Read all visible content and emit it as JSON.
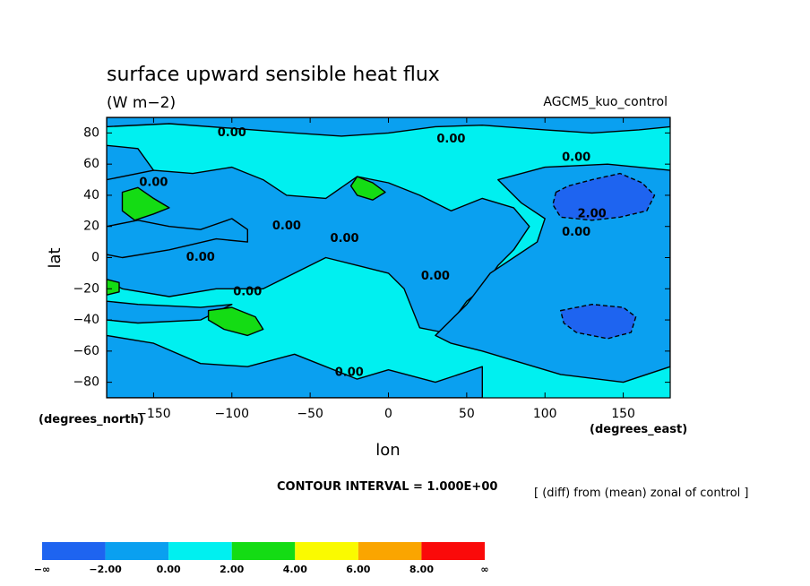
{
  "chart_data": {
    "type": "heatmap",
    "title": "surface upward sensible heat flux",
    "units": "(W m−2)",
    "model_label": "AGCM5_kuo_control",
    "xlabel": "lon",
    "ylabel": "lat",
    "x_unit_label": "(degrees_east)",
    "y_unit_label": "(degrees_north)",
    "xlim": [
      -180,
      180
    ],
    "ylim": [
      -90,
      90
    ],
    "x_ticks": [
      {
        "value": -150,
        "label": "−150"
      },
      {
        "value": -100,
        "label": "−100"
      },
      {
        "value": -50,
        "label": "−50"
      },
      {
        "value": 0,
        "label": "0"
      },
      {
        "value": 50,
        "label": "50"
      },
      {
        "value": 100,
        "label": "100"
      },
      {
        "value": 150,
        "label": "150"
      }
    ],
    "y_ticks": [
      {
        "value": 80,
        "label": "80"
      },
      {
        "value": 60,
        "label": "60"
      },
      {
        "value": 40,
        "label": "40"
      },
      {
        "value": 20,
        "label": "20"
      },
      {
        "value": 0,
        "label": "0"
      },
      {
        "value": -20,
        "label": "−20"
      },
      {
        "value": -40,
        "label": "−40"
      },
      {
        "value": -60,
        "label": "−60"
      },
      {
        "value": -80,
        "label": "−80"
      }
    ],
    "contour_interval_text": "CONTOUR INTERVAL = 1.000E+00",
    "description_text": "[ (diff) from (mean) zonal of control ]",
    "contour_labels": [
      {
        "text": "0.00",
        "lon": -100,
        "lat": 80
      },
      {
        "text": "0.00",
        "lon": 40,
        "lat": 76
      },
      {
        "text": "0.00",
        "lon": 120,
        "lat": 64
      },
      {
        "text": "0.00",
        "lon": -150,
        "lat": 48
      },
      {
        "text": "0.00",
        "lon": -65,
        "lat": 20
      },
      {
        "text": "0.00",
        "lon": -28,
        "lat": 12
      },
      {
        "text": "2.00",
        "lon": 130,
        "lat": 28
      },
      {
        "text": "0.00",
        "lon": 120,
        "lat": 16
      },
      {
        "text": "0.00",
        "lon": -120,
        "lat": 0
      },
      {
        "text": "0.00",
        "lon": 30,
        "lat": -12
      },
      {
        "text": "0.00",
        "lon": -90,
        "lat": -22
      },
      {
        "text": "0.00",
        "lon": -25,
        "lat": -74
      }
    ],
    "colorbar": {
      "colors": [
        "#1e64f0",
        "#0aa0f0",
        "#00f0f0",
        "#14dc14",
        "#fafa00",
        "#faa500",
        "#fa0a0a"
      ],
      "labels": [
        "−∞",
        "−2.00",
        "0.00",
        "2.00",
        "4.00",
        "6.00",
        "8.00",
        "∞"
      ]
    },
    "regions": [
      {
        "level": 2,
        "color": "#00f0f0",
        "points": [
          [
            -180,
            -90
          ],
          [
            180,
            -90
          ],
          [
            180,
            90
          ],
          [
            -180,
            90
          ]
        ]
      },
      {
        "level": 1,
        "color": "#0aa0f0",
        "points": [
          [
            -180,
            84
          ],
          [
            -140,
            86
          ],
          [
            -100,
            83
          ],
          [
            -60,
            80
          ],
          [
            -30,
            78
          ],
          [
            0,
            80
          ],
          [
            30,
            84
          ],
          [
            60,
            85
          ],
          [
            100,
            82
          ],
          [
            130,
            80
          ],
          [
            160,
            82
          ],
          [
            180,
            84
          ],
          [
            180,
            90
          ],
          [
            -180,
            90
          ]
        ]
      },
      {
        "level": 1,
        "color": "#0aa0f0",
        "points": [
          [
            -180,
            72
          ],
          [
            -160,
            70
          ],
          [
            -150,
            56
          ],
          [
            -160,
            40
          ],
          [
            -180,
            42
          ]
        ]
      },
      {
        "level": 1,
        "color": "#0aa0f0",
        "points": [
          [
            -180,
            50
          ],
          [
            -150,
            56
          ],
          [
            -125,
            54
          ],
          [
            -100,
            58
          ],
          [
            -80,
            50
          ],
          [
            -65,
            40
          ],
          [
            -40,
            38
          ],
          [
            -20,
            52
          ],
          [
            0,
            48
          ],
          [
            20,
            40
          ],
          [
            40,
            30
          ],
          [
            60,
            38
          ],
          [
            80,
            32
          ],
          [
            90,
            20
          ],
          [
            80,
            5
          ],
          [
            70,
            -5
          ],
          [
            60,
            -20
          ],
          [
            50,
            -28
          ],
          [
            40,
            -42
          ],
          [
            35,
            -48
          ],
          [
            20,
            -45
          ],
          [
            10,
            -20
          ],
          [
            0,
            -10
          ],
          [
            -20,
            -5
          ],
          [
            -40,
            0
          ],
          [
            -60,
            -10
          ],
          [
            -80,
            -20
          ],
          [
            -110,
            -20
          ],
          [
            -140,
            -25
          ],
          [
            -170,
            -20
          ],
          [
            -180,
            -15
          ],
          [
            -180,
            20
          ],
          [
            -160,
            24
          ],
          [
            -140,
            20
          ],
          [
            -120,
            18
          ],
          [
            -100,
            25
          ],
          [
            -90,
            18
          ],
          [
            -90,
            10
          ],
          [
            -110,
            12
          ],
          [
            -140,
            5
          ],
          [
            -170,
            0
          ],
          [
            -180,
            2
          ]
        ]
      },
      {
        "level": 1,
        "color": "#0aa0f0",
        "points": [
          [
            70,
            50
          ],
          [
            100,
            58
          ],
          [
            140,
            60
          ],
          [
            180,
            56
          ],
          [
            180,
            -70
          ],
          [
            150,
            -80
          ],
          [
            110,
            -75
          ],
          [
            80,
            -66
          ],
          [
            60,
            -60
          ],
          [
            40,
            -55
          ],
          [
            30,
            -50
          ],
          [
            50,
            -30
          ],
          [
            65,
            -10
          ],
          [
            80,
            0
          ],
          [
            95,
            10
          ],
          [
            100,
            25
          ],
          [
            85,
            35
          ]
        ]
      },
      {
        "level": 1,
        "color": "#0aa0f0",
        "points": [
          [
            -180,
            -50
          ],
          [
            -150,
            -55
          ],
          [
            -120,
            -68
          ],
          [
            -90,
            -70
          ],
          [
            -60,
            -62
          ],
          [
            -40,
            -70
          ],
          [
            -20,
            -78
          ],
          [
            0,
            -72
          ],
          [
            30,
            -80
          ],
          [
            60,
            -70
          ],
          [
            60,
            -90
          ],
          [
            -180,
            -90
          ]
        ]
      },
      {
        "level": 1,
        "color": "#0aa0f0",
        "points": [
          [
            -180,
            -28
          ],
          [
            -160,
            -30
          ],
          [
            -120,
            -32
          ],
          [
            -100,
            -30
          ],
          [
            -120,
            -40
          ],
          [
            -160,
            -42
          ],
          [
            -180,
            -40
          ]
        ]
      },
      {
        "level": 0,
        "color": "#1e64f0",
        "points": [
          [
            107,
            42
          ],
          [
            115,
            46
          ],
          [
            130,
            50
          ],
          [
            148,
            54
          ],
          [
            162,
            48
          ],
          [
            170,
            40
          ],
          [
            165,
            30
          ],
          [
            148,
            26
          ],
          [
            130,
            24
          ],
          [
            110,
            26
          ],
          [
            105,
            34
          ]
        ]
      },
      {
        "level": 0,
        "color": "#1e64f0",
        "points": [
          [
            110,
            -34
          ],
          [
            130,
            -30
          ],
          [
            150,
            -32
          ],
          [
            158,
            -38
          ],
          [
            155,
            -48
          ],
          [
            140,
            -52
          ],
          [
            120,
            -48
          ],
          [
            112,
            -42
          ]
        ]
      },
      {
        "level": 3,
        "color": "#14dc14",
        "points": [
          [
            -170,
            42
          ],
          [
            -160,
            45
          ],
          [
            -150,
            38
          ],
          [
            -140,
            32
          ],
          [
            -150,
            28
          ],
          [
            -162,
            24
          ],
          [
            -170,
            30
          ]
        ]
      },
      {
        "level": 3,
        "color": "#14dc14",
        "points": [
          [
            -20,
            52
          ],
          [
            -10,
            48
          ],
          [
            -2,
            42
          ],
          [
            -10,
            37
          ],
          [
            -20,
            40
          ],
          [
            -24,
            46
          ]
        ]
      },
      {
        "level": 3,
        "color": "#14dc14",
        "points": [
          [
            -115,
            -34
          ],
          [
            -100,
            -32
          ],
          [
            -85,
            -38
          ],
          [
            -80,
            -46
          ],
          [
            -90,
            -50
          ],
          [
            -105,
            -46
          ],
          [
            -115,
            -40
          ]
        ]
      },
      {
        "level": 3,
        "color": "#14dc14",
        "points": [
          [
            -180,
            -14
          ],
          [
            -172,
            -16
          ],
          [
            -172,
            -22
          ],
          [
            -180,
            -24
          ]
        ]
      }
    ]
  }
}
